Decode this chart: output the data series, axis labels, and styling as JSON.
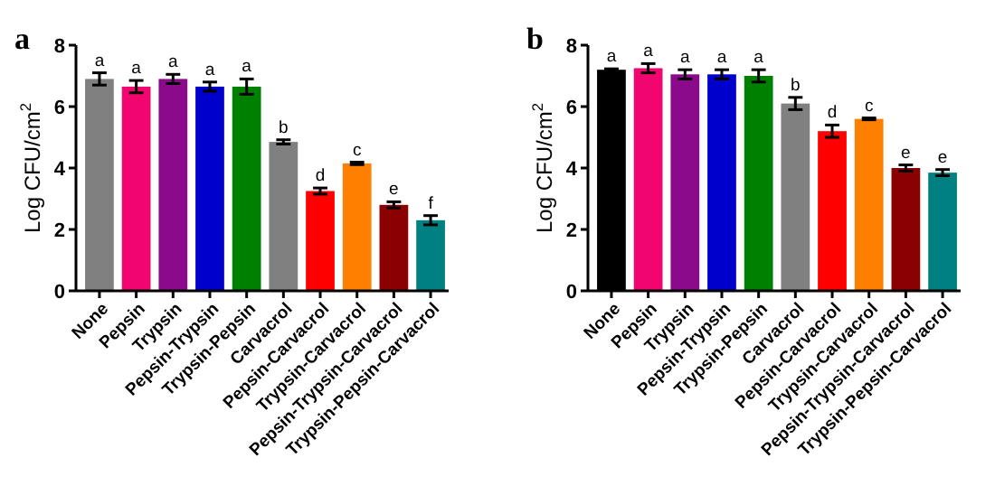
{
  "chart_data": [
    {
      "type": "bar",
      "title": "a",
      "ylabel": "Log CFU/cm$^{2}$",
      "categories": [
        "None",
        "Pepsin",
        "Trypsin",
        "Pepsin-Trypsin",
        "Trypsin-Pepsin",
        "Carvacrol",
        "Pepsin-Carvacrol",
        "Trypsin-Carvacrol",
        "Pepsin-Trypsin-Carvacrol",
        "Trypsin-Pepsin-Carvacrol"
      ],
      "values": [
        6.9,
        6.65,
        6.9,
        6.65,
        6.65,
        4.85,
        3.25,
        4.15,
        2.8,
        2.3
      ],
      "errors": [
        0.2,
        0.2,
        0.15,
        0.15,
        0.25,
        0.07,
        0.1,
        0.04,
        0.1,
        0.15
      ],
      "colors": [
        "#808080",
        "#f0066e",
        "#8b0a8b",
        "#0000cd",
        "#008000",
        "#808080",
        "#ff0000",
        "#ff8000",
        "#8b0000",
        "#008080"
      ],
      "ylim": [
        0,
        8
      ],
      "yticks": [
        0,
        2,
        4,
        6,
        8
      ],
      "grid": false,
      "annotations": [
        {
          "text": "a",
          "x": "None",
          "y": 7.1
        },
        {
          "text": "a",
          "x": "Pepsin",
          "y": 6.85
        },
        {
          "text": "a",
          "x": "Trypsin",
          "y": 7.05
        },
        {
          "text": "a",
          "x": "Pepsin-Trypsin",
          "y": 6.8
        },
        {
          "text": "a",
          "x": "Trypsin-Pepsin",
          "y": 6.9
        },
        {
          "text": "b",
          "x": "Carvacrol",
          "y": 4.92
        },
        {
          "text": "d",
          "x": "Pepsin-Carvacrol",
          "y": 3.35
        },
        {
          "text": "c",
          "x": "Trypsin-Carvacrol",
          "y": 4.19
        },
        {
          "text": "e",
          "x": "Pepsin-Trypsin-Carvacrol",
          "y": 2.9
        },
        {
          "text": "f",
          "x": "Trypsin-Pepsin-Carvacrol",
          "y": 2.45
        }
      ]
    },
    {
      "type": "bar",
      "title": "b",
      "ylabel": "Log CFU/cm$^{2}$",
      "categories": [
        "None",
        "Pepsin",
        "Trypsin",
        "Pepsin-Trypsin",
        "Trypsin-Pepsin",
        "Carvacrol",
        "Pepsin-Carvacrol",
        "Trypsin-Carvacrol",
        "Pepsin-Trypsin-Carvacrol",
        "Trypsin-Pepsin-Carvacrol"
      ],
      "values": [
        7.2,
        7.25,
        7.05,
        7.05,
        7.0,
        6.1,
        5.2,
        5.6,
        4.0,
        3.85
      ],
      "errors": [
        0.03,
        0.15,
        0.15,
        0.15,
        0.2,
        0.2,
        0.2,
        0.03,
        0.1,
        0.1
      ],
      "colors": [
        "#000000",
        "#f0066e",
        "#8b0a8b",
        "#0000cd",
        "#008000",
        "#808080",
        "#ff0000",
        "#ff8000",
        "#8b0000",
        "#008080"
      ],
      "ylim": [
        0,
        8
      ],
      "yticks": [
        0,
        2,
        4,
        6,
        8
      ],
      "grid": false,
      "annotations": [
        {
          "text": "a",
          "x": "None",
          "y": 7.23
        },
        {
          "text": "a",
          "x": "Pepsin",
          "y": 7.4
        },
        {
          "text": "a",
          "x": "Trypsin",
          "y": 7.2
        },
        {
          "text": "a",
          "x": "Pepsin-Trypsin",
          "y": 7.2
        },
        {
          "text": "a",
          "x": "Trypsin-Pepsin",
          "y": 7.2
        },
        {
          "text": "b",
          "x": "Carvacrol",
          "y": 6.3
        },
        {
          "text": "d",
          "x": "Pepsin-Carvacrol",
          "y": 5.4
        },
        {
          "text": "c",
          "x": "Trypsin-Carvacrol",
          "y": 5.63
        },
        {
          "text": "e",
          "x": "Pepsin-Trypsin-Carvacrol",
          "y": 4.1
        },
        {
          "text": "e",
          "x": "Trypsin-Pepsin-Carvacrol",
          "y": 3.95
        }
      ]
    }
  ]
}
